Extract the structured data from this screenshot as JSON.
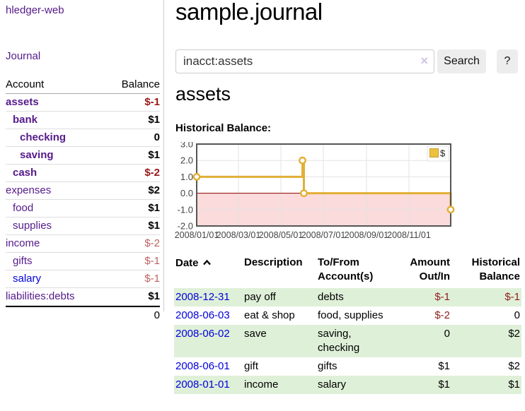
{
  "app": {
    "title": "hledger-web"
  },
  "sidebar": {
    "nav_journal": "Journal",
    "accounts": {
      "header_account": "Account",
      "header_balance": "Balance",
      "rows": [
        {
          "name": "assets",
          "depth": 1,
          "highlighted": true,
          "balance": "$-1",
          "balance_style": "neg-strong"
        },
        {
          "name": "bank",
          "depth": 2,
          "highlighted": true,
          "balance": "$1",
          "balance_style": ""
        },
        {
          "name": "checking",
          "depth": 3,
          "highlighted": true,
          "balance": "0",
          "balance_style": ""
        },
        {
          "name": "saving",
          "depth": 3,
          "highlighted": true,
          "balance": "$1",
          "balance_style": ""
        },
        {
          "name": "cash",
          "depth": 2,
          "highlighted": true,
          "balance": "$-2",
          "balance_style": "neg-strong"
        },
        {
          "name": "expenses",
          "depth": 1,
          "highlighted": false,
          "balance": "$2",
          "balance_style": ""
        },
        {
          "name": "food",
          "depth": 2,
          "highlighted": false,
          "balance": "$1",
          "balance_style": ""
        },
        {
          "name": "supplies",
          "depth": 2,
          "highlighted": false,
          "balance": "$1",
          "balance_style": ""
        },
        {
          "name": "income",
          "depth": 1,
          "highlighted": false,
          "balance": "$-2",
          "balance_style": "neg-soft"
        },
        {
          "name": "gifts",
          "depth": 2,
          "highlighted": false,
          "balance": "$-1",
          "balance_style": "neg-soft"
        },
        {
          "name": "salary",
          "depth": 2,
          "highlighted": false,
          "balance": "$-1",
          "balance_style": "neg-soft",
          "link_color": "blue"
        },
        {
          "name": "liabilities:debts",
          "depth": 1,
          "highlighted": false,
          "balance": "$1",
          "balance_style": ""
        }
      ],
      "total": "0"
    }
  },
  "main": {
    "title": "sample.journal",
    "search": {
      "value": "inacct:assets",
      "clear_icon": "×",
      "button_label": "Search",
      "help_label": "?"
    },
    "account_heading": "assets",
    "section_label": "Historical Balance:",
    "register": {
      "headers": {
        "date": "Date",
        "description": "Description",
        "accounts": "To/From Account(s)",
        "amount": "Amount Out/In",
        "balance": "Historical Balance"
      },
      "rows": [
        {
          "date": "2008-12-31",
          "description": "pay off",
          "accounts": "debts",
          "amount": "$-1",
          "amount_negative": true,
          "balance": "$-1",
          "balance_negative": true,
          "stripe": true
        },
        {
          "date": "2008-06-03",
          "description": "eat & shop",
          "accounts": "food, supplies",
          "amount": "$-2",
          "amount_negative": true,
          "balance": "0",
          "balance_negative": false,
          "stripe": false
        },
        {
          "date": "2008-06-02",
          "description": "save",
          "accounts": "saving, checking",
          "amount": "0",
          "amount_negative": false,
          "balance": "$2",
          "balance_negative": false,
          "stripe": true
        },
        {
          "date": "2008-06-01",
          "description": "gift",
          "accounts": "gifts",
          "amount": "$1",
          "amount_negative": false,
          "balance": "$2",
          "balance_negative": false,
          "stripe": false
        },
        {
          "date": "2008-01-01",
          "description": "income",
          "accounts": "salary",
          "amount": "$1",
          "amount_negative": false,
          "balance": "$1",
          "balance_negative": false,
          "stripe": true
        }
      ]
    }
  },
  "chart_data": {
    "type": "line",
    "title": "Historical Balance",
    "step": true,
    "series": [
      {
        "name": "$",
        "color": "#e2af35",
        "points": [
          [
            "2008-01-01",
            1.0
          ],
          [
            "2008-06-01",
            2.0
          ],
          [
            "2008-06-03",
            0.0
          ],
          [
            "2008-12-31",
            -1.0
          ]
        ]
      }
    ],
    "xlim": [
      "2008-01-01",
      "2008-12-31"
    ],
    "ylim": [
      -2.0,
      3.0
    ],
    "x_ticks": [
      "2008/01/01",
      "2008/03/01",
      "2008/05/01",
      "2008/07/01",
      "2008/09/01",
      "2008/11/01"
    ],
    "y_ticks": [
      "3.0",
      "2.0",
      "1.0",
      "0.0",
      "-1.0",
      "-2.0"
    ],
    "legend": "$",
    "legend_position": "top-right",
    "grid": true,
    "grid_color": "#e3e3e3",
    "border_color": "#555555",
    "zero_line_color": "#8f0000",
    "negative_region_color": "#fbdbdb",
    "marker_fill": "#ffffff"
  }
}
